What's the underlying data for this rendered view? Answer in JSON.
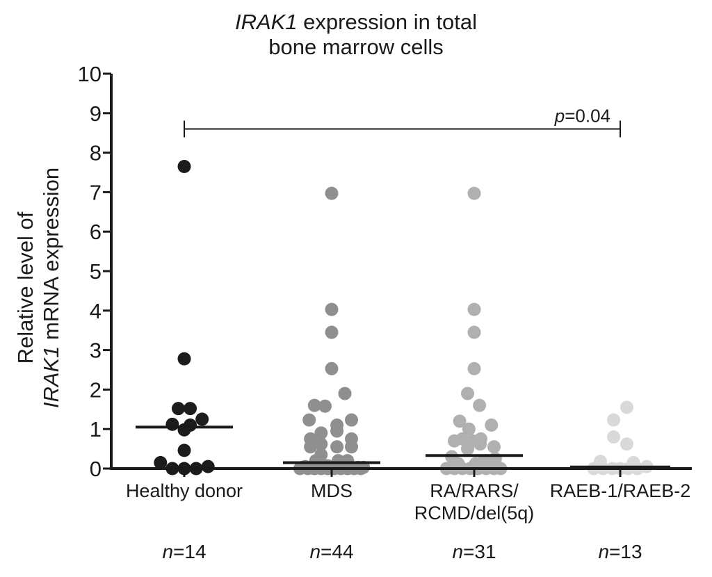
{
  "chart_data": {
    "type": "scatter",
    "subtype": "dot-plot-with-median",
    "title": {
      "italic": "IRAK1",
      "line1_rest": " expression in total",
      "line2": "bone marrow cells"
    },
    "ylabel": {
      "line1": "Relative level of",
      "line2_italic": "IRAK1",
      "line2_rest": " mRNA expression"
    },
    "xlabel": "",
    "ylim": [
      0,
      10
    ],
    "yticks": [
      "0",
      "1",
      "2",
      "3",
      "4",
      "5",
      "6",
      "7",
      "8",
      "9",
      "10"
    ],
    "grid": false,
    "legend": "none",
    "categories": [
      "Healthy donor",
      "MDS",
      "RA/RARS/\nRCMD/del(5q)",
      "RAEB-1/RAEB-2"
    ],
    "category_lines": [
      [
        "Healthy donor"
      ],
      [
        "MDS"
      ],
      [
        "RA/RARS/",
        "RCMD/del(5q)"
      ],
      [
        "RAEB-1/RAEB-2"
      ]
    ],
    "n_labels": [
      {
        "n": "n",
        "eq": "=14"
      },
      {
        "n": "n",
        "eq": "=44"
      },
      {
        "n": "n",
        "eq": "=31"
      },
      {
        "n": "n",
        "eq": "=13"
      }
    ],
    "series": [
      {
        "name": "Healthy donor",
        "color": "#1c1c1c",
        "median": 1.05,
        "points": [
          [
            0,
            7.65
          ],
          [
            0,
            2.78
          ],
          [
            -0.45,
            1.52
          ],
          [
            0.45,
            1.52
          ],
          [
            -0.9,
            1.12
          ],
          [
            0,
            0.98
          ],
          [
            0.45,
            1.1
          ],
          [
            1.35,
            1.25
          ],
          [
            0,
            0.46
          ],
          [
            -1.8,
            0.15
          ],
          [
            -0.9,
            0.0
          ],
          [
            0,
            0.0
          ],
          [
            0.9,
            0.0
          ],
          [
            1.8,
            0.05
          ]
        ]
      },
      {
        "name": "MDS",
        "color": "#8f8f8f",
        "median": 0.15,
        "points": [
          [
            0,
            6.97
          ],
          [
            0,
            4.03
          ],
          [
            0,
            3.45
          ],
          [
            0,
            2.53
          ],
          [
            1,
            1.9
          ],
          [
            -1.3,
            1.6
          ],
          [
            -0.5,
            1.58
          ],
          [
            -1.7,
            1.23
          ],
          [
            0.4,
            1.1
          ],
          [
            1.5,
            1.23
          ],
          [
            -1.6,
            0.75
          ],
          [
            -0.8,
            0.9
          ],
          [
            0.4,
            0.95
          ],
          [
            1.5,
            0.75
          ],
          [
            -1.6,
            0.55
          ],
          [
            -0.8,
            0.62
          ],
          [
            -0.8,
            0.35
          ],
          [
            0.4,
            0.55
          ],
          [
            1.5,
            0.55
          ],
          [
            -1.2,
            0.2
          ],
          [
            -0.3,
            0.07
          ],
          [
            0.5,
            0.2
          ],
          [
            1.2,
            0.2
          ],
          [
            -2,
            0.05
          ],
          [
            -2.4,
            0.0
          ],
          [
            -1.8,
            0.0
          ],
          [
            -1.3,
            0.0
          ],
          [
            -0.8,
            0.0
          ],
          [
            -0.3,
            0.0
          ],
          [
            0.2,
            0.0
          ],
          [
            0.7,
            0.0
          ],
          [
            1.2,
            0.0
          ],
          [
            1.7,
            0.0
          ],
          [
            2.2,
            0.0
          ],
          [
            -2.2,
            0.03
          ],
          [
            -1.6,
            0.03
          ],
          [
            -1.0,
            0.03
          ],
          [
            -0.5,
            0.03
          ],
          [
            0,
            0.03
          ],
          [
            0.5,
            0.03
          ],
          [
            1.0,
            0.03
          ],
          [
            1.5,
            0.03
          ],
          [
            2.0,
            0.03
          ],
          [
            2.4,
            0.03
          ]
        ]
      },
      {
        "name": "RA/RARS/RCMD/del(5q)",
        "color": "#b0b0b0",
        "median": 0.33,
        "points": [
          [
            0,
            6.97
          ],
          [
            0,
            4.03
          ],
          [
            0,
            3.45
          ],
          [
            0,
            2.53
          ],
          [
            -0.5,
            1.9
          ],
          [
            0.4,
            1.6
          ],
          [
            -1.1,
            1.2
          ],
          [
            1.3,
            1.1
          ],
          [
            -0.4,
            1.0
          ],
          [
            0.5,
            0.75
          ],
          [
            -1.5,
            0.7
          ],
          [
            -0.9,
            0.75
          ],
          [
            -0.1,
            0.7
          ],
          [
            0.45,
            0.62
          ],
          [
            1.5,
            0.55
          ],
          [
            -0.5,
            0.5
          ],
          [
            0.9,
            0.2
          ],
          [
            1.6,
            0.25
          ],
          [
            -1.7,
            0.3
          ],
          [
            -2.1,
            0.0
          ],
          [
            -1.5,
            0.0
          ],
          [
            -0.9,
            0.0
          ],
          [
            -0.3,
            0.0
          ],
          [
            0.3,
            0.0
          ],
          [
            0.9,
            0.0
          ],
          [
            1.5,
            0.0
          ],
          [
            2.0,
            0.0
          ],
          [
            -1.2,
            0.12
          ],
          [
            0.1,
            0.12
          ],
          [
            0.6,
            0.15
          ],
          [
            1.2,
            0.05
          ]
        ]
      },
      {
        "name": "RAEB-1/RAEB-2",
        "color": "#d9d9d9",
        "median": 0.04,
        "points": [
          [
            0.5,
            1.55
          ],
          [
            -0.5,
            1.23
          ],
          [
            -0.5,
            0.8
          ],
          [
            0.5,
            0.62
          ],
          [
            -1.5,
            0.18
          ],
          [
            -2,
            0.0
          ],
          [
            -1.3,
            0.0
          ],
          [
            -0.6,
            0.0
          ],
          [
            0,
            0.0
          ],
          [
            0.6,
            0.0
          ],
          [
            1.3,
            0.0
          ],
          [
            2.0,
            0.05
          ],
          [
            1.0,
            0.15
          ]
        ]
      }
    ],
    "annotations": [
      {
        "type": "bracket",
        "from": "Healthy donor",
        "to": "RAEB-1/RAEB-2",
        "y": 8.6,
        "label_italic": "p",
        "label_rest": "=0.04"
      }
    ]
  }
}
